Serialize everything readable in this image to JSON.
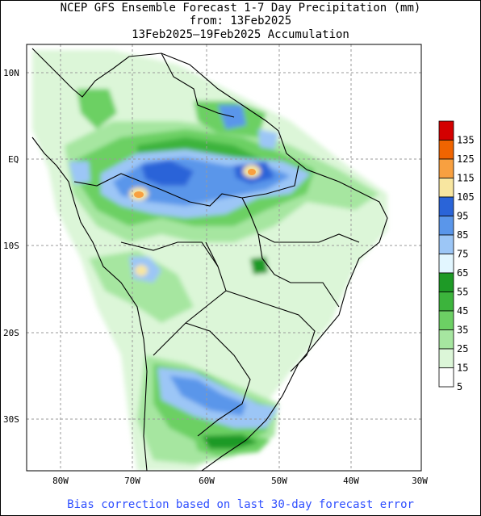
{
  "header": {
    "title": "NCEP GFS Ensemble Forecast 1-7 Day Precipitation (mm)",
    "from_line": "from: 13Feb2025",
    "accumulation_line": "13Feb2025–19Feb2025 Accumulation"
  },
  "footer": {
    "note": "Bias correction based on last 30-day forecast error"
  },
  "axes": {
    "lat_labels": [
      "10N",
      "EQ",
      "10S",
      "20S",
      "30S"
    ],
    "lon_labels": [
      "80W",
      "70W",
      "60W",
      "50W",
      "40W",
      "30W"
    ]
  },
  "legend": {
    "levels": [
      {
        "label": "135",
        "color": "#d40000"
      },
      {
        "label": "125",
        "color": "#f06400"
      },
      {
        "label": "115",
        "color": "#f8a040"
      },
      {
        "label": "105",
        "color": "#f8e6a0"
      },
      {
        "label": "95",
        "color": "#2a64d8"
      },
      {
        "label": "85",
        "color": "#5a96ea"
      },
      {
        "label": "75",
        "color": "#9cc6f6"
      },
      {
        "label": "65",
        "color": "#e2f6ff"
      },
      {
        "label": "55",
        "color": "#1e9a26"
      },
      {
        "label": "45",
        "color": "#3cb43c"
      },
      {
        "label": "35",
        "color": "#6cd064"
      },
      {
        "label": "25",
        "color": "#a6e6a0"
      },
      {
        "label": "15",
        "color": "#dcf6d8"
      },
      {
        "label": "5",
        "color": "#ffffff"
      }
    ]
  }
}
